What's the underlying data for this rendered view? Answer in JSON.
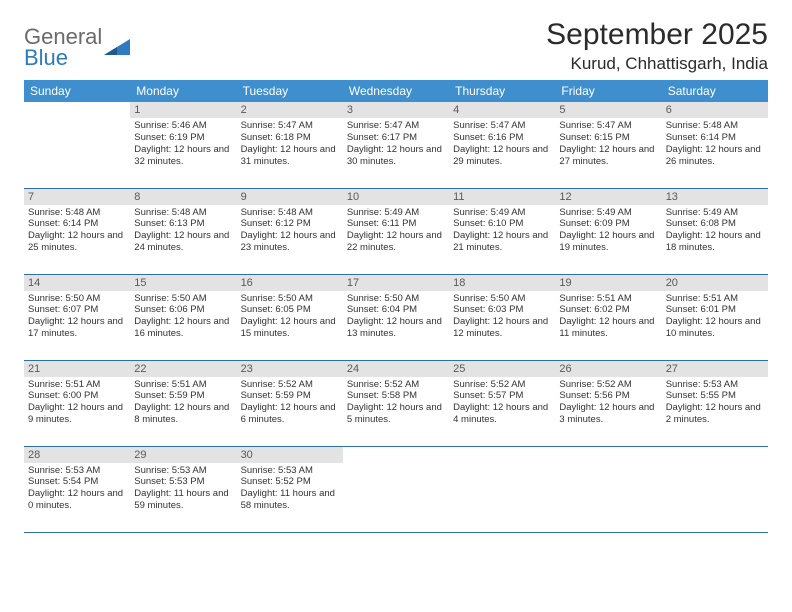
{
  "logo": {
    "general": "General",
    "blue": "Blue"
  },
  "title": "September 2025",
  "location": "Kurud, Chhattisgarh, India",
  "colors": {
    "header_bg": "#3f8fce",
    "header_text": "#ffffff",
    "daynum_bg": "#e3e3e3",
    "daynum_text": "#5a5a5a",
    "border": "#2f6fa6",
    "body_text": "#333333",
    "logo_gray": "#6b6b6b",
    "logo_blue": "#2f7bbf"
  },
  "day_headers": [
    "Sunday",
    "Monday",
    "Tuesday",
    "Wednesday",
    "Thursday",
    "Friday",
    "Saturday"
  ],
  "weeks": [
    [
      null,
      {
        "n": 1,
        "sr": "5:46 AM",
        "ss": "6:19 PM",
        "dl": "12 hours and 32 minutes."
      },
      {
        "n": 2,
        "sr": "5:47 AM",
        "ss": "6:18 PM",
        "dl": "12 hours and 31 minutes."
      },
      {
        "n": 3,
        "sr": "5:47 AM",
        "ss": "6:17 PM",
        "dl": "12 hours and 30 minutes."
      },
      {
        "n": 4,
        "sr": "5:47 AM",
        "ss": "6:16 PM",
        "dl": "12 hours and 29 minutes."
      },
      {
        "n": 5,
        "sr": "5:47 AM",
        "ss": "6:15 PM",
        "dl": "12 hours and 27 minutes."
      },
      {
        "n": 6,
        "sr": "5:48 AM",
        "ss": "6:14 PM",
        "dl": "12 hours and 26 minutes."
      }
    ],
    [
      {
        "n": 7,
        "sr": "5:48 AM",
        "ss": "6:14 PM",
        "dl": "12 hours and 25 minutes."
      },
      {
        "n": 8,
        "sr": "5:48 AM",
        "ss": "6:13 PM",
        "dl": "12 hours and 24 minutes."
      },
      {
        "n": 9,
        "sr": "5:48 AM",
        "ss": "6:12 PM",
        "dl": "12 hours and 23 minutes."
      },
      {
        "n": 10,
        "sr": "5:49 AM",
        "ss": "6:11 PM",
        "dl": "12 hours and 22 minutes."
      },
      {
        "n": 11,
        "sr": "5:49 AM",
        "ss": "6:10 PM",
        "dl": "12 hours and 21 minutes."
      },
      {
        "n": 12,
        "sr": "5:49 AM",
        "ss": "6:09 PM",
        "dl": "12 hours and 19 minutes."
      },
      {
        "n": 13,
        "sr": "5:49 AM",
        "ss": "6:08 PM",
        "dl": "12 hours and 18 minutes."
      }
    ],
    [
      {
        "n": 14,
        "sr": "5:50 AM",
        "ss": "6:07 PM",
        "dl": "12 hours and 17 minutes."
      },
      {
        "n": 15,
        "sr": "5:50 AM",
        "ss": "6:06 PM",
        "dl": "12 hours and 16 minutes."
      },
      {
        "n": 16,
        "sr": "5:50 AM",
        "ss": "6:05 PM",
        "dl": "12 hours and 15 minutes."
      },
      {
        "n": 17,
        "sr": "5:50 AM",
        "ss": "6:04 PM",
        "dl": "12 hours and 13 minutes."
      },
      {
        "n": 18,
        "sr": "5:50 AM",
        "ss": "6:03 PM",
        "dl": "12 hours and 12 minutes."
      },
      {
        "n": 19,
        "sr": "5:51 AM",
        "ss": "6:02 PM",
        "dl": "12 hours and 11 minutes."
      },
      {
        "n": 20,
        "sr": "5:51 AM",
        "ss": "6:01 PM",
        "dl": "12 hours and 10 minutes."
      }
    ],
    [
      {
        "n": 21,
        "sr": "5:51 AM",
        "ss": "6:00 PM",
        "dl": "12 hours and 9 minutes."
      },
      {
        "n": 22,
        "sr": "5:51 AM",
        "ss": "5:59 PM",
        "dl": "12 hours and 8 minutes."
      },
      {
        "n": 23,
        "sr": "5:52 AM",
        "ss": "5:59 PM",
        "dl": "12 hours and 6 minutes."
      },
      {
        "n": 24,
        "sr": "5:52 AM",
        "ss": "5:58 PM",
        "dl": "12 hours and 5 minutes."
      },
      {
        "n": 25,
        "sr": "5:52 AM",
        "ss": "5:57 PM",
        "dl": "12 hours and 4 minutes."
      },
      {
        "n": 26,
        "sr": "5:52 AM",
        "ss": "5:56 PM",
        "dl": "12 hours and 3 minutes."
      },
      {
        "n": 27,
        "sr": "5:53 AM",
        "ss": "5:55 PM",
        "dl": "12 hours and 2 minutes."
      }
    ],
    [
      {
        "n": 28,
        "sr": "5:53 AM",
        "ss": "5:54 PM",
        "dl": "12 hours and 0 minutes."
      },
      {
        "n": 29,
        "sr": "5:53 AM",
        "ss": "5:53 PM",
        "dl": "11 hours and 59 minutes."
      },
      {
        "n": 30,
        "sr": "5:53 AM",
        "ss": "5:52 PM",
        "dl": "11 hours and 58 minutes."
      },
      null,
      null,
      null,
      null
    ]
  ],
  "labels": {
    "sunrise": "Sunrise:",
    "sunset": "Sunset:",
    "daylight": "Daylight:"
  }
}
